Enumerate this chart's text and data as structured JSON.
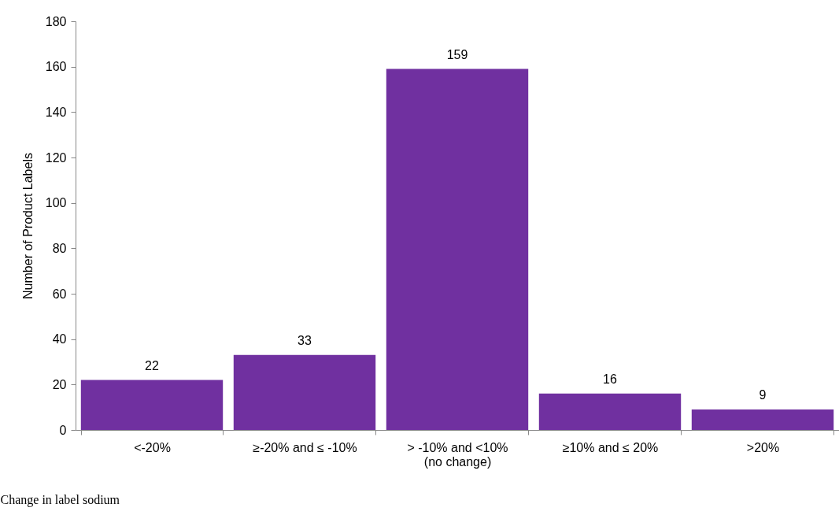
{
  "chart_data": {
    "type": "bar",
    "xlabel": "Change in label sodium",
    "ylabel": "Number of Product Labels",
    "categories": [
      "<-20%",
      "≥-20% and  ≤ -10%",
      "> -10% and <10%\n(no change)",
      "≥10% and  ≤ 20%",
      ">20%"
    ],
    "values": [
      22,
      33,
      159,
      16,
      9
    ],
    "color": "#7030a0",
    "ylim": [
      0,
      180
    ],
    "yticks": [
      0,
      20,
      40,
      60,
      80,
      100,
      120,
      140,
      160,
      180
    ],
    "grid": false,
    "data_labels": true
  }
}
